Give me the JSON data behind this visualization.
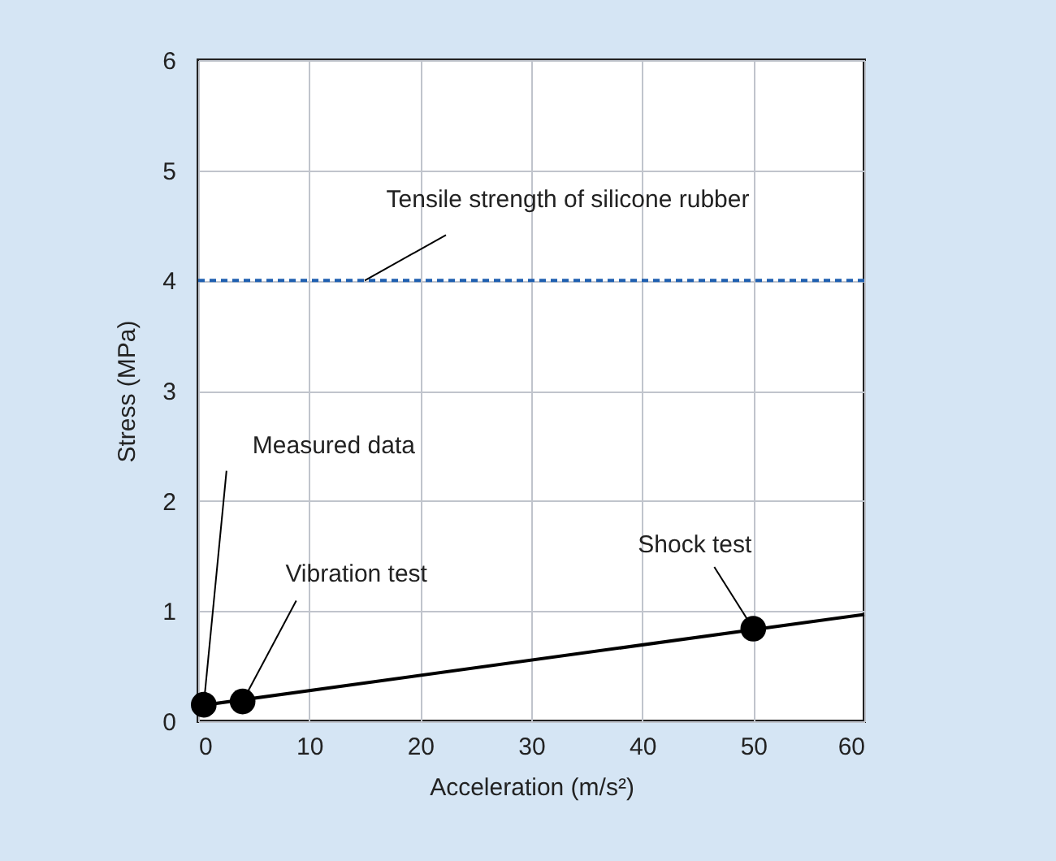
{
  "chart_data": {
    "type": "line",
    "xlabel": "Acceleration (m/s²)",
    "ylabel": "Stress (MPa)",
    "series": [
      {
        "color": "#000000",
        "x": [
          0,
          60
        ],
        "values": [
          0.14,
          0.97
        ],
        "marker": "none"
      },
      {
        "type": "scatter",
        "color": "#000000",
        "x": [
          0.5,
          4,
          50
        ],
        "values": [
          0.15,
          0.18,
          0.84
        ],
        "marker": "circle"
      }
    ],
    "xlim": [
      0,
      60
    ],
    "xticks": [
      0,
      10,
      20,
      30,
      40,
      50,
      60
    ],
    "ylim": [
      0,
      6
    ],
    "yticks": [
      0,
      1,
      2,
      3,
      4,
      5,
      6
    ],
    "grid": true,
    "ref_lines": [
      {
        "axis": "y",
        "value": 4,
        "label": "Tensile strength of silicone rubber",
        "color": "#1f5fb0",
        "line_style": "dashed"
      }
    ],
    "annotations": [
      {
        "text": "Measured data",
        "x": 0.5,
        "y": 0.15
      },
      {
        "text": "Vibration test",
        "x": 4,
        "y": 0.18
      },
      {
        "text": "Shock test",
        "x": 50,
        "y": 0.84
      }
    ]
  }
}
